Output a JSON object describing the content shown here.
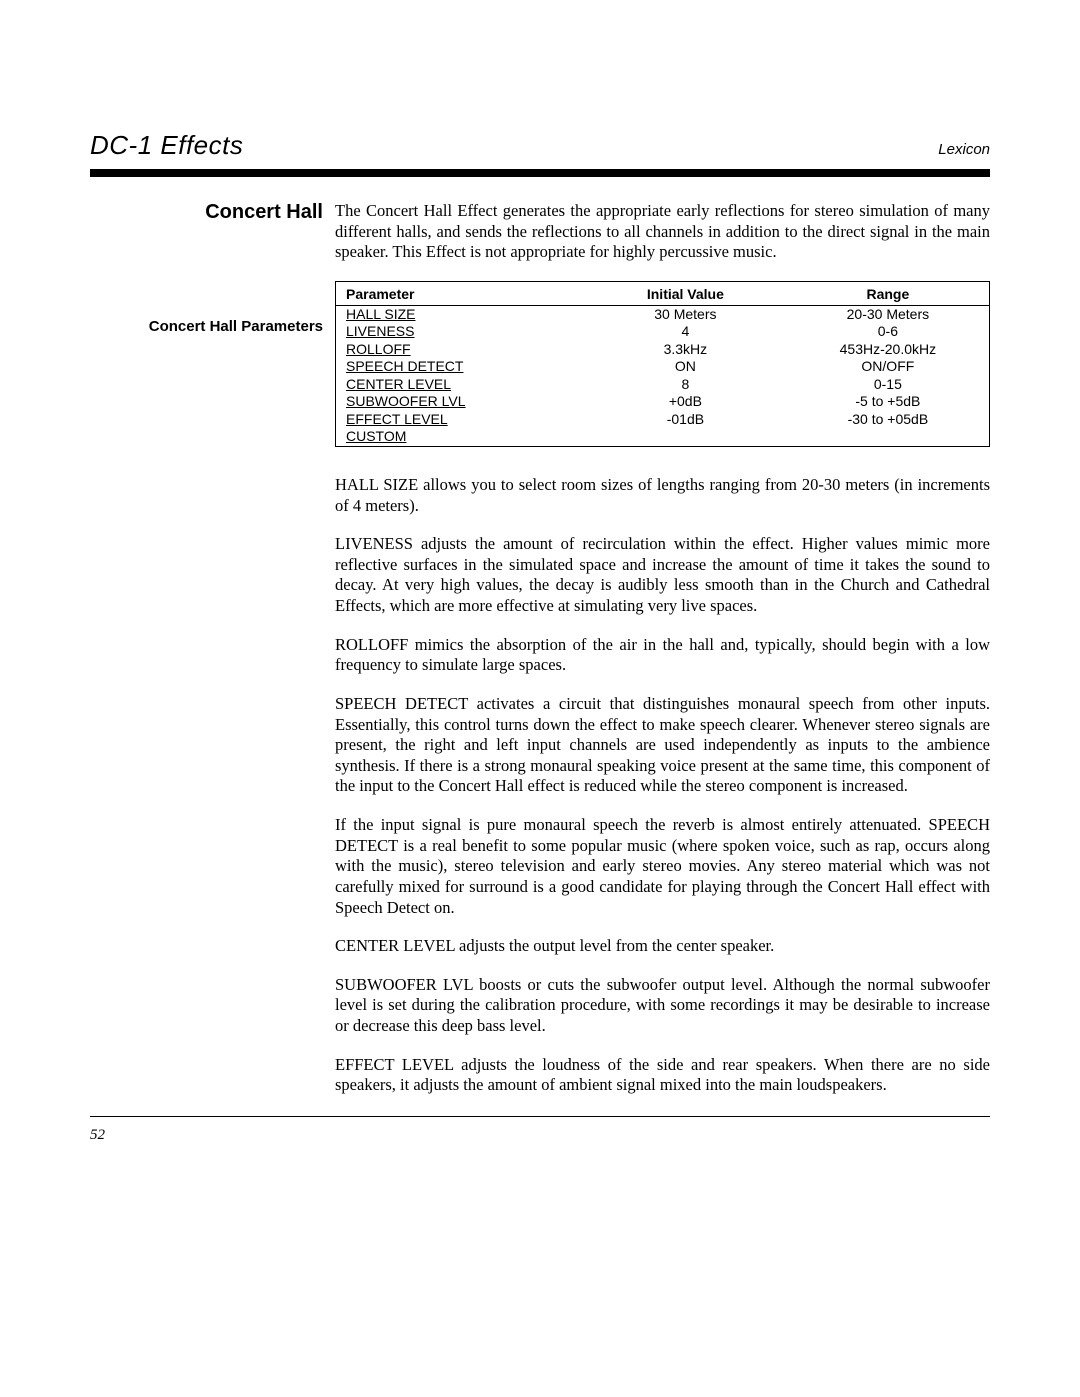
{
  "header": {
    "title": "DC-1 Effects",
    "brand": "Lexicon"
  },
  "section": {
    "heading": "Concert Hall",
    "intro": "The Concert Hall Effect generates the appropriate early reflections for stereo simulation of many different halls, and sends the reflections to all channels in addition to the direct signal in the main speaker. This Effect is not appropriate for highly percussive music.",
    "subheading": "Concert Hall Parameters"
  },
  "table": {
    "headers": [
      "Parameter",
      "Initial Value",
      "Range"
    ],
    "rows": [
      {
        "p": "HALL SIZE",
        "iv": "30 Meters",
        "r": "20-30 Meters"
      },
      {
        "p": "LIVENESS",
        "iv": "4",
        "r": "0-6"
      },
      {
        "p": "ROLLOFF",
        "iv": "3.3kHz",
        "r": "453Hz-20.0kHz"
      },
      {
        "p": "SPEECH DETECT",
        "iv": "ON",
        "r": "ON/OFF"
      },
      {
        "p": "CENTER LEVEL",
        "iv": "8",
        "r": "0-15"
      },
      {
        "p": "SUBWOOFER LVL",
        "iv": "+0dB",
        "r": "-5 to +5dB"
      },
      {
        "p": "EFFECT LEVEL",
        "iv": "-01dB",
        "r": "-30 to +05dB"
      },
      {
        "p": "CUSTOM",
        "iv": "",
        "r": ""
      }
    ]
  },
  "paragraphs": {
    "hall_size": "HALL SIZE allows you to select room sizes of lengths ranging from 20-30 meters (in increments of 4 meters).",
    "liveness": "LIVENESS adjusts the amount of recirculation within the effect. Higher values mimic more reflective surfaces in the simulated space and increase the amount of time it takes the sound to decay. At very high values, the decay is audibly less smooth than in the Church and Cathedral Effects, which are more effective at simulating very live spaces.",
    "rolloff": "ROLLOFF mimics the absorption of the air in the hall and, typically, should begin with a low frequency to simulate large spaces.",
    "speech1": "SPEECH DETECT activates a circuit that distinguishes monaural speech from other inputs. Essentially, this control turns down the effect to make speech clearer. Whenever stereo signals are present, the right and left input channels are used independently as inputs to the ambience synthesis. If there is a strong monaural speaking voice present at the same time, this component of the input to the Concert Hall effect is reduced while the stereo component is increased.",
    "speech2": "If the input signal is pure monaural speech the reverb is almost entirely attenuated. SPEECH DETECT is a real benefit to some popular music (where spoken voice, such as rap, occurs along with the music), stereo television and early stereo movies. Any stereo material which was not carefully mixed for surround is a good candidate for playing through the Concert Hall effect with Speech Detect on.",
    "center": "CENTER LEVEL adjusts the output level from the center speaker.",
    "sub": "SUBWOOFER LVL boosts or cuts the subwoofer output level. Although the normal subwoofer level is set during the calibration procedure, with some recordings it may be desirable to increase or decrease this deep bass level.",
    "effect": "EFFECT LEVEL adjusts the loudness of the side and rear speakers. When there are no side speakers, it adjusts the amount of ambient signal mixed into the main loudspeakers."
  },
  "footer": {
    "page": "52"
  }
}
